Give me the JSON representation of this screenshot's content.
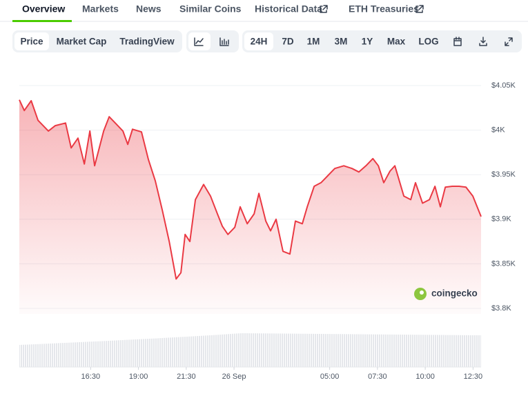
{
  "tabs": [
    "Overview",
    "Markets",
    "News",
    "Similar Coins",
    "Historical Data",
    "ETH Treasuries"
  ],
  "toolbar": {
    "views": [
      "Price",
      "Market Cap",
      "TradingView"
    ],
    "ranges": [
      "24H",
      "7D",
      "1M",
      "3M",
      "1Y",
      "Max",
      "LOG"
    ]
  },
  "watermark": "coingecko",
  "chart_data": {
    "type": "area",
    "color": "#ea3943",
    "x": [
      12.77,
      13.03,
      13.39,
      13.75,
      14.29,
      14.65,
      15.19,
      15.48,
      15.84,
      16.17,
      16.46,
      16.71,
      17.18,
      17.47,
      17.83,
      18.19,
      18.44,
      18.69,
      19.16,
      19.52,
      19.88,
      20.25,
      20.61,
      20.97,
      21.22,
      21.44,
      21.69,
      21.98,
      22.41,
      22.77,
      23.13,
      23.39,
      23.68,
      24.04,
      24.32,
      24.69,
      25.05,
      25.3,
      25.66,
      25.91,
      26.2,
      26.56,
      26.92,
      27.21,
      27.57,
      27.83,
      28.19,
      28.55,
      28.91,
      29.27,
      29.74,
      30.17,
      30.53,
      30.9,
      31.26,
      31.55,
      31.83,
      32.16,
      32.41,
      32.88,
      33.24,
      33.49,
      33.86,
      34.22,
      34.51,
      34.79,
      35.05,
      35.41,
      35.77,
      36.13,
      36.49,
      36.92
    ],
    "values": [
      4034,
      4022,
      4033,
      4011,
      3999,
      4005,
      4008,
      3980,
      3991,
      3962,
      3999,
      3960,
      3999,
      4015,
      4007,
      3999,
      3984,
      4001,
      3998,
      3967,
      3943,
      3910,
      3875,
      3833,
      3840,
      3883,
      3875,
      3922,
      3939,
      3926,
      3906,
      3892,
      3883,
      3891,
      3914,
      3895,
      3906,
      3929,
      3898,
      3887,
      3900,
      3864,
      3861,
      3898,
      3895,
      3914,
      3937,
      3941,
      3949,
      3957,
      3960,
      3957,
      3953,
      3960,
      3968,
      3960,
      3941,
      3954,
      3960,
      3926,
      3922,
      3941,
      3918,
      3922,
      3937,
      3914,
      3936,
      3937,
      3937,
      3936,
      3926,
      3903
    ],
    "xlim": [
      12.77,
      36.92
    ],
    "ylim": [
      3800,
      4050
    ],
    "xticks": [
      {
        "value": 16.5,
        "label": "16:30"
      },
      {
        "value": 19,
        "label": "19:00"
      },
      {
        "value": 21.5,
        "label": "21:30"
      },
      {
        "value": 24,
        "label": "26 Sep"
      },
      {
        "value": 29,
        "label": "05:00"
      },
      {
        "value": 31.5,
        "label": "07:30"
      },
      {
        "value": 34,
        "label": "10:00"
      },
      {
        "value": 36.5,
        "label": "12:30"
      }
    ],
    "yticks": [
      {
        "value": 3800,
        "label": "$3.8K"
      },
      {
        "value": 3850,
        "label": "$3.85K"
      },
      {
        "value": 3900,
        "label": "$3.9K"
      },
      {
        "value": 3950,
        "label": "$3.95K"
      },
      {
        "value": 4000,
        "label": "$4K"
      },
      {
        "value": 4050,
        "label": "$4.05K"
      }
    ],
    "grid": true
  }
}
